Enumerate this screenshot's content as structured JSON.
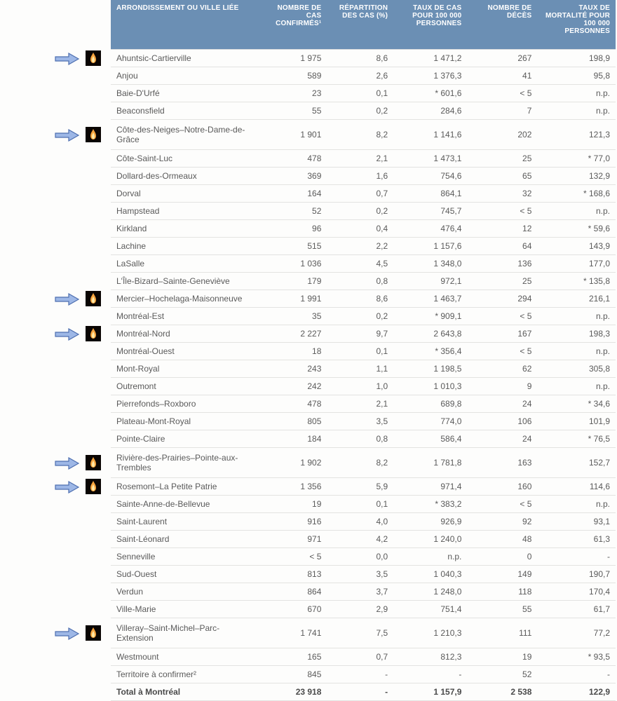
{
  "colors": {
    "header_bg": "#6b8fb4",
    "header_text": "#ffffff",
    "row_border": "#e3e3e1",
    "text": "#5a5a5a",
    "page_bg": "#fdfdfc",
    "arrow_fill": "#9db7e6",
    "arrow_stroke": "#4e6fb0",
    "flame_bg": "#0a0503",
    "flame_outer": "#f7a33c",
    "flame_inner": "#ffe9a8"
  },
  "headers": {
    "name": "ARRONDISSEMENT OU VILLE LIÉE",
    "cases": "NOMBRE DE CAS CONFIRMÉS¹",
    "pct": "RÉPARTITION DES CAS (%)",
    "rate": "TAUX DE CAS POUR 100 000 PERSONNES",
    "deaths": "NOMBRE DE DÉCÈS",
    "mrate": "TAUX DE MORTALITÉ POUR 100 000 PERSONNES"
  },
  "rows": [
    {
      "name": "Ahuntsic-Cartierville",
      "cases": "1 975",
      "pct": "8,6",
      "rate": "1 471,2",
      "deaths": "267",
      "mrate": "198,9",
      "marker": true
    },
    {
      "name": "Anjou",
      "cases": "589",
      "pct": "2,6",
      "rate": "1 376,3",
      "deaths": "41",
      "mrate": "95,8"
    },
    {
      "name": "Baie-D'Urfé",
      "cases": "23",
      "pct": "0,1",
      "rate": "* 601,6",
      "deaths": "< 5",
      "mrate": "n.p."
    },
    {
      "name": "Beaconsfield",
      "cases": "55",
      "pct": "0,2",
      "rate": "284,6",
      "deaths": "7",
      "mrate": "n.p."
    },
    {
      "name": "Côte-des-Neiges–Notre-Dame-de-Grâce",
      "cases": "1 901",
      "pct": "8,2",
      "rate": "1 141,6",
      "deaths": "202",
      "mrate": "121,3",
      "marker": true,
      "tall": true
    },
    {
      "name": "Côte-Saint-Luc",
      "cases": "478",
      "pct": "2,1",
      "rate": "1 473,1",
      "deaths": "25",
      "mrate": "* 77,0"
    },
    {
      "name": "Dollard-des-Ormeaux",
      "cases": "369",
      "pct": "1,6",
      "rate": "754,6",
      "deaths": "65",
      "mrate": "132,9"
    },
    {
      "name": "Dorval",
      "cases": "164",
      "pct": "0,7",
      "rate": "864,1",
      "deaths": "32",
      "mrate": "* 168,6"
    },
    {
      "name": "Hampstead",
      "cases": "52",
      "pct": "0,2",
      "rate": "745,7",
      "deaths": "< 5",
      "mrate": "n.p."
    },
    {
      "name": "Kirkland",
      "cases": "96",
      "pct": "0,4",
      "rate": "476,4",
      "deaths": "12",
      "mrate": "* 59,6"
    },
    {
      "name": "Lachine",
      "cases": "515",
      "pct": "2,2",
      "rate": "1 157,6",
      "deaths": "64",
      "mrate": "143,9"
    },
    {
      "name": "LaSalle",
      "cases": "1 036",
      "pct": "4,5",
      "rate": "1 348,0",
      "deaths": "136",
      "mrate": "177,0"
    },
    {
      "name": "L'Île-Bizard–Sainte-Geneviève",
      "cases": "179",
      "pct": "0,8",
      "rate": "972,1",
      "deaths": "25",
      "mrate": "* 135,8"
    },
    {
      "name": "Mercier–Hochelaga-Maisonneuve",
      "cases": "1 991",
      "pct": "8,6",
      "rate": "1 463,7",
      "deaths": "294",
      "mrate": "216,1",
      "marker": true
    },
    {
      "name": "Montréal-Est",
      "cases": "35",
      "pct": "0,2",
      "rate": "* 909,1",
      "deaths": "< 5",
      "mrate": "n.p."
    },
    {
      "name": "Montréal-Nord",
      "cases": "2 227",
      "pct": "9,7",
      "rate": "2 643,8",
      "deaths": "167",
      "mrate": "198,3",
      "marker": true
    },
    {
      "name": "Montréal-Ouest",
      "cases": "18",
      "pct": "0,1",
      "rate": "* 356,4",
      "deaths": "< 5",
      "mrate": "n.p."
    },
    {
      "name": "Mont-Royal",
      "cases": "243",
      "pct": "1,1",
      "rate": "1 198,5",
      "deaths": "62",
      "mrate": "305,8"
    },
    {
      "name": "Outremont",
      "cases": "242",
      "pct": "1,0",
      "rate": "1 010,3",
      "deaths": "9",
      "mrate": "n.p."
    },
    {
      "name": "Pierrefonds–Roxboro",
      "cases": "478",
      "pct": "2,1",
      "rate": "689,8",
      "deaths": "24",
      "mrate": "* 34,6"
    },
    {
      "name": "Plateau-Mont-Royal",
      "cases": "805",
      "pct": "3,5",
      "rate": "774,0",
      "deaths": "106",
      "mrate": "101,9"
    },
    {
      "name": "Pointe-Claire",
      "cases": "184",
      "pct": "0,8",
      "rate": "586,4",
      "deaths": "24",
      "mrate": "* 76,5"
    },
    {
      "name": "Rivière-des-Prairies–Pointe-aux-Trembles",
      "cases": "1 902",
      "pct": "8,2",
      "rate": "1 781,8",
      "deaths": "163",
      "mrate": "152,7",
      "marker": true,
      "tall": true
    },
    {
      "name": "Rosemont–La Petite Patrie",
      "cases": "1 356",
      "pct": "5,9",
      "rate": "971,4",
      "deaths": "160",
      "mrate": "114,6",
      "marker": true
    },
    {
      "name": "Sainte-Anne-de-Bellevue",
      "cases": "19",
      "pct": "0,1",
      "rate": "* 383,2",
      "deaths": "< 5",
      "mrate": "n.p."
    },
    {
      "name": "Saint-Laurent",
      "cases": "916",
      "pct": "4,0",
      "rate": "926,9",
      "deaths": "92",
      "mrate": "93,1"
    },
    {
      "name": "Saint-Léonard",
      "cases": "971",
      "pct": "4,2",
      "rate": "1 240,0",
      "deaths": "48",
      "mrate": "61,3"
    },
    {
      "name": "Senneville",
      "cases": "< 5",
      "pct": "0,0",
      "rate": "n.p.",
      "deaths": "0",
      "mrate": "-"
    },
    {
      "name": "Sud-Ouest",
      "cases": "813",
      "pct": "3,5",
      "rate": "1 040,3",
      "deaths": "149",
      "mrate": "190,7"
    },
    {
      "name": "Verdun",
      "cases": "864",
      "pct": "3,7",
      "rate": "1 248,0",
      "deaths": "118",
      "mrate": "170,4"
    },
    {
      "name": "Ville-Marie",
      "cases": "670",
      "pct": "2,9",
      "rate": "751,4",
      "deaths": "55",
      "mrate": "61,7"
    },
    {
      "name": "Villeray–Saint-Michel–Parc-Extension",
      "cases": "1 741",
      "pct": "7,5",
      "rate": "1 210,3",
      "deaths": "111",
      "mrate": "77,2",
      "marker": true,
      "tall": true
    },
    {
      "name": "Westmount",
      "cases": "165",
      "pct": "0,7",
      "rate": "812,3",
      "deaths": "19",
      "mrate": "* 93,5"
    },
    {
      "name": "Territoire à confirmer²",
      "cases": "845",
      "pct": "-",
      "rate": "-",
      "deaths": "52",
      "mrate": "-"
    },
    {
      "name": "Total à Montréal",
      "cases": "23 918",
      "pct": "-",
      "rate": "1 157,9",
      "deaths": "2 538",
      "mrate": "122,9",
      "total": true
    }
  ]
}
